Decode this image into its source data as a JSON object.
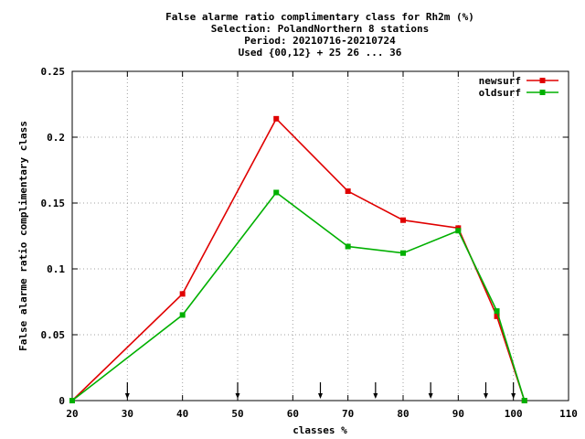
{
  "chart_data": {
    "type": "line",
    "title_lines": [
      "False alarme ratio complimentary class  for Rh2m (%)",
      "Selection: PolandNorthern      8 stations",
      "Period: 20210716-20210724",
      "Used {00,12} + 25 26 ... 36"
    ],
    "xlabel": "classes %",
    "ylabel": "False alarme ratio complimentary class",
    "xlim": [
      20,
      110
    ],
    "ylim": [
      0,
      0.25
    ],
    "xticks": [
      20,
      30,
      40,
      50,
      60,
      70,
      80,
      90,
      100,
      110
    ],
    "yticks": [
      0,
      0.05,
      0.1,
      0.15,
      0.2,
      0.25
    ],
    "ytick_labels": [
      "0",
      "0.05",
      "0.1",
      "0.15",
      "0.2",
      "0.25"
    ],
    "grid": true,
    "legend_position": "top-right",
    "arrow_markers_x": [
      30,
      50,
      65,
      75,
      85,
      95,
      100
    ],
    "series": [
      {
        "name": "newsurf",
        "color": "#e00000",
        "x": [
          20,
          40,
          57,
          70,
          80,
          90,
          97,
          102
        ],
        "y": [
          0.0,
          0.081,
          0.214,
          0.159,
          0.137,
          0.131,
          0.064,
          0.0
        ]
      },
      {
        "name": "oldsurf",
        "color": "#00b000",
        "x": [
          20,
          40,
          57,
          70,
          80,
          90,
          97,
          102
        ],
        "y": [
          0.0,
          0.065,
          0.158,
          0.117,
          0.112,
          0.129,
          0.068,
          0.0
        ]
      }
    ]
  }
}
